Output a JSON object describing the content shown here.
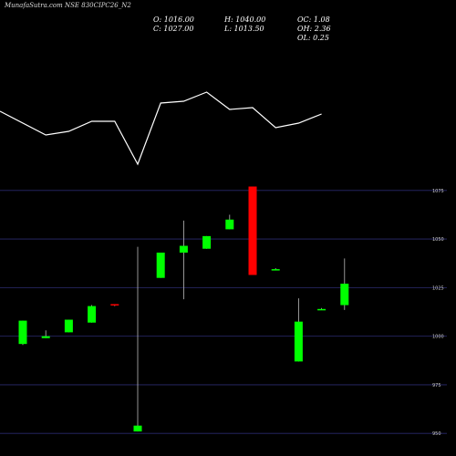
{
  "title": "MunafaSutra.com NSE 830CIPC26_N2",
  "ohlc": {
    "open": "O: 1016.00",
    "close": "C: 1027.00",
    "high": "H: 1040.00",
    "low": "L: 1013.50",
    "oc": "OC: 1.08",
    "oh": "OH: 2.36",
    "ol": "OL: 0.25"
  },
  "colors": {
    "background": "#000000",
    "up": "#00ff00",
    "down": "#ff0000",
    "line": "#ffffff",
    "grid": "#2a2a6e"
  },
  "chart_data": {
    "type": "candlestick",
    "ylim": [
      944,
      1081
    ],
    "yticks": [
      950,
      975,
      1000,
      1025,
      1050,
      1075
    ],
    "candles": [
      {
        "open": 996.0,
        "high": 1008.0,
        "low": 995.5,
        "close": 1008.0
      },
      {
        "open": 999.0,
        "high": 1003.0,
        "low": 999.0,
        "close": 1000.0
      },
      {
        "open": 1002.0,
        "high": 1008.5,
        "low": 1002.0,
        "close": 1008.5
      },
      {
        "open": 1007.0,
        "high": 1016.0,
        "low": 1007.0,
        "close": 1015.5
      },
      {
        "open": 1016.5,
        "high": 1016.5,
        "low": 1015.5,
        "close": 1016.0
      },
      {
        "open": 951.0,
        "high": 1046.0,
        "low": 951.0,
        "close": 954.0
      },
      {
        "open": 1030.0,
        "high": 1043.0,
        "low": 1030.0,
        "close": 1043.0
      },
      {
        "open": 1043.0,
        "high": 1059.5,
        "low": 1019.0,
        "close": 1046.5
      },
      {
        "open": 1045.0,
        "high": 1051.5,
        "low": 1045.0,
        "close": 1051.5
      },
      {
        "open": 1055.0,
        "high": 1062.5,
        "low": 1055.0,
        "close": 1060.0
      },
      {
        "open": 1077.0,
        "high": 1077.0,
        "low": 1031.5,
        "close": 1031.5
      },
      {
        "open": 1034.0,
        "high": 1035.0,
        "low": 1034.0,
        "close": 1034.5
      },
      {
        "open": 987.0,
        "high": 1019.5,
        "low": 987.0,
        "close": 1007.5
      },
      {
        "open": 1013.5,
        "high": 1014.5,
        "low": 1013.5,
        "close": 1014.0
      },
      {
        "open": 1016.0,
        "high": 1040.0,
        "low": 1013.5,
        "close": 1027.0
      }
    ],
    "overlay_line": [
      122,
      148,
      144,
      133,
      133,
      180,
      113,
      111,
      101,
      120,
      118,
      140,
      135,
      125
    ]
  }
}
